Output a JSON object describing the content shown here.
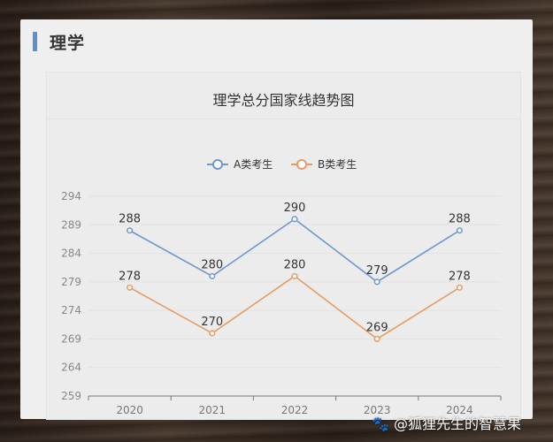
{
  "section": {
    "title": "理学"
  },
  "watermark": "🐾 @狐狸先生的智慧果",
  "colors": {
    "accent": "#5b8fd0",
    "series_a": "#6e97cf",
    "series_b": "#e79b62"
  },
  "chart_data": {
    "type": "line",
    "title": "理学总分国家线趋势图",
    "x": [
      "2020",
      "2021",
      "2022",
      "2023",
      "2024"
    ],
    "series": [
      {
        "name": "A类考生",
        "values": [
          288,
          280,
          290,
          279,
          288
        ]
      },
      {
        "name": "B类考生",
        "values": [
          278,
          270,
          280,
          269,
          278
        ]
      }
    ],
    "y_ticks": [
      259,
      264,
      269,
      274,
      279,
      284,
      289,
      294
    ],
    "ylim": [
      259,
      294
    ],
    "grid": true,
    "legend": "top-center",
    "data_labels": true
  }
}
